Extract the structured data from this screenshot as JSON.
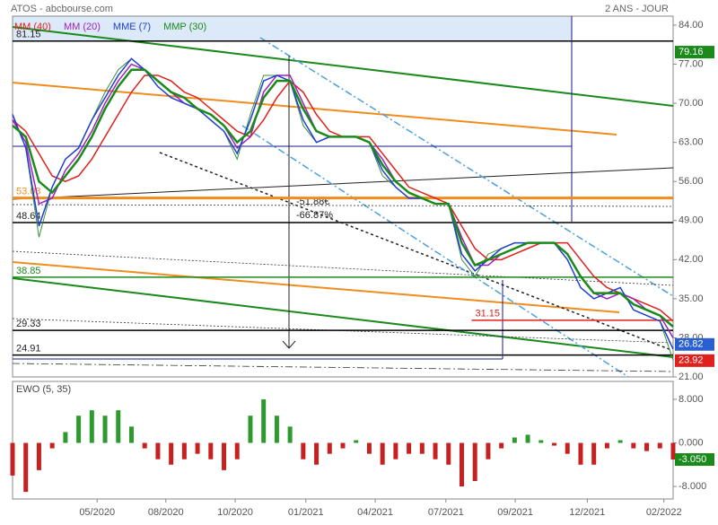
{
  "chart_data": {
    "type": "line",
    "title": "ATOS - abcbourse.com",
    "period": "2 ANS - JOUR",
    "x": [
      0,
      2,
      4,
      6,
      8,
      10,
      12,
      14,
      16,
      18,
      20,
      22,
      24,
      26,
      28,
      30,
      32,
      34,
      36,
      38,
      40,
      42,
      44,
      46,
      48,
      50,
      52,
      54,
      56,
      58,
      60,
      62,
      64,
      66,
      68,
      70,
      72,
      74,
      76,
      78,
      80,
      82,
      84,
      86,
      88,
      90,
      92,
      94,
      96,
      98,
      100
    ],
    "xlim": [
      0,
      100
    ],
    "xticks": [
      {
        "value": 12.8,
        "label": "05/2020"
      },
      {
        "value": 23.2,
        "label": "08/2020"
      },
      {
        "value": 33.7,
        "label": "10/2020"
      },
      {
        "value": 44.4,
        "label": "01/2021"
      },
      {
        "value": 54.9,
        "label": "04/2021"
      },
      {
        "value": 65.6,
        "label": "07/2021"
      },
      {
        "value": 76.1,
        "label": "09/2021"
      },
      {
        "value": 87.0,
        "label": "12/2021"
      },
      {
        "value": 98.6,
        "label": "02/2022"
      }
    ],
    "ylim": [
      21,
      85.6
    ],
    "yticks": [
      {
        "value": 84,
        "label": "84.00"
      },
      {
        "value": 77,
        "label": "77.00"
      },
      {
        "value": 70,
        "label": "70.00"
      },
      {
        "value": 63,
        "label": "63.00"
      },
      {
        "value": 56,
        "label": "56.00"
      },
      {
        "value": 49,
        "label": "49.00"
      },
      {
        "value": 42,
        "label": "42.00"
      },
      {
        "value": 35,
        "label": "35.00"
      },
      {
        "value": 28,
        "label": "28.00"
      },
      {
        "value": 21,
        "label": "21.00"
      }
    ],
    "series": [
      {
        "color": "#3d8f3d",
        "values": [
          68,
          62,
          46,
          55,
          60,
          62,
          67,
          72,
          76,
          78,
          76,
          73,
          71,
          70,
          69,
          67,
          65,
          60,
          68,
          75,
          75,
          74,
          66,
          63,
          64,
          64,
          64,
          63,
          57,
          55,
          53,
          53,
          52,
          52,
          42,
          39,
          43,
          44,
          45,
          45,
          45,
          45,
          42,
          37,
          35,
          36,
          37,
          33,
          32,
          31,
          24
        ]
      },
      {
        "name": "MM (40)",
        "color": "#e0201c",
        "values": [
          67,
          65,
          61,
          57,
          56,
          57,
          60,
          64,
          68,
          72,
          75,
          75,
          74,
          72,
          71,
          69,
          67,
          65,
          64,
          67,
          71,
          74,
          72,
          68,
          65,
          64,
          64,
          64,
          61,
          58,
          55,
          54,
          53,
          52,
          48,
          44,
          42,
          42,
          43,
          44,
          45,
          45,
          45,
          42,
          39,
          37,
          36,
          35,
          34,
          33,
          31
        ]
      },
      {
        "name": "MM (20)",
        "color": "#a020c0",
        "values": [
          67,
          63,
          52,
          53,
          58,
          61,
          65,
          70,
          74,
          77,
          76,
          74,
          72,
          70,
          69,
          68,
          66,
          62,
          64,
          72,
          75,
          75,
          70,
          65,
          64,
          64,
          64,
          63,
          60,
          56,
          54,
          53,
          52,
          52,
          46,
          41,
          41,
          43,
          44,
          45,
          45,
          45,
          43,
          39,
          36,
          35,
          36,
          35,
          33,
          32,
          28
        ]
      },
      {
        "name": "MME (7)",
        "color": "#2040d0",
        "values": [
          68,
          62,
          48,
          55,
          60,
          62,
          67,
          71,
          75,
          78,
          76,
          73,
          71,
          70,
          69,
          67,
          65,
          61,
          67,
          74,
          75,
          74,
          67,
          63,
          64,
          64,
          64,
          63,
          58,
          55,
          53,
          53,
          52,
          52,
          43,
          40,
          42,
          44,
          45,
          45,
          45,
          45,
          42,
          37,
          35,
          36,
          37,
          33,
          32,
          31,
          26
        ]
      },
      {
        "name": "MMP (30)",
        "color": "#1a8a1a",
        "values": [
          66,
          64,
          56,
          54,
          57,
          60,
          64,
          69,
          73,
          76,
          76,
          74,
          72,
          71,
          69,
          68,
          66,
          63,
          65,
          71,
          74,
          74,
          69,
          65,
          64,
          64,
          64,
          63,
          59,
          56,
          54,
          53,
          52,
          52,
          45,
          41,
          42,
          43,
          44,
          45,
          45,
          45,
          43,
          39,
          36,
          36,
          36,
          34,
          33,
          32,
          30
        ]
      }
    ],
    "levels": [
      {
        "value": 81.15,
        "color": "#000000"
      },
      {
        "value": 53.03,
        "color": "#f08c1e"
      },
      {
        "value": 48.64,
        "color": "#000000"
      },
      {
        "value": 38.85,
        "color": "#1a8a1a"
      },
      {
        "value": 31.15,
        "color": "#e0201c",
        "start": 69.5
      },
      {
        "value": 29.33,
        "color": "#000000"
      },
      {
        "value": 24.91,
        "color": "#000000"
      }
    ],
    "markers": [
      {
        "value": 79.16,
        "color": "#1a8a1a"
      },
      {
        "value": 26.82,
        "color": "#2a5fd0"
      },
      {
        "value": 23.92,
        "color": "#e0201c"
      }
    ],
    "annotations": [
      "-51.88€",
      "-66.87%"
    ],
    "indicator": {
      "type": "bar",
      "title": "EWO (5, 35)",
      "values": [
        -6,
        -9,
        -5,
        -1,
        2,
        5,
        6,
        5,
        6,
        3,
        -1,
        -3,
        -4,
        -3,
        -2,
        -3,
        -5,
        -3,
        5,
        8,
        5,
        3,
        -3,
        -4,
        -2,
        -1,
        0.5,
        -2,
        -4,
        -3,
        -2,
        -2,
        -3,
        -4,
        -8,
        -7,
        -3,
        -1,
        1,
        1.5,
        0.5,
        -0.5,
        -2,
        -4,
        -4,
        -1,
        0.5,
        -1,
        -1.5,
        -1,
        -3.05
      ],
      "ylim": [
        -10.3,
        11.3
      ],
      "yticks": [
        {
          "value": 8,
          "label": "8.000"
        },
        {
          "value": 0,
          "label": "0.000"
        },
        {
          "value": -8,
          "label": "-8.000"
        }
      ],
      "colors": [
        "#2e9a2e",
        "#c82020"
      ],
      "marker": {
        "value": -3.05,
        "label": "-3.050",
        "color": "#1a8a1a"
      }
    }
  }
}
